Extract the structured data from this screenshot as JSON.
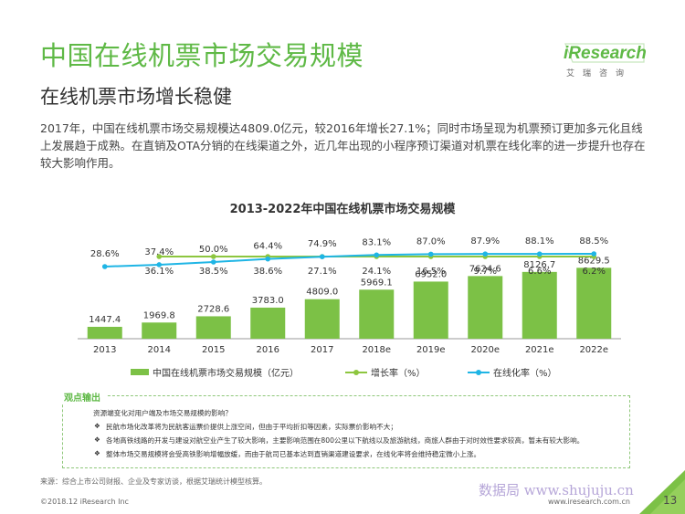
{
  "header": {
    "title": "中国在线机票市场交易规模",
    "subtitle": "在线机票市场增长稳健",
    "intro": "2017年，中国在线机票市场交易规模达4809.0亿元，较2016年增长27.1%；同时市场呈现为机票预订更加多元化且线上发展趋于成熟。在直销及OTA分销的在线渠道之外，近几年出现的小程序预订渠道对机票在线化率的进一步提升也存在较大影响作用。"
  },
  "logo": {
    "brand": "iResearch",
    "sub": "艾瑞咨询"
  },
  "chart_data": {
    "type": "bar",
    "title": "2013-2022年中国在线机票市场交易规模",
    "categories": [
      "2013",
      "2014",
      "2015",
      "2016",
      "2017",
      "2018e",
      "2019e",
      "2020e",
      "2021e",
      "2022e"
    ],
    "series": [
      {
        "name": "中国在线机票市场交易规模（亿元）",
        "type": "bar",
        "values": [
          1447.4,
          1969.8,
          2728.6,
          3783.0,
          4809.0,
          5969.1,
          6952.0,
          7624.6,
          8126.7,
          8629.5
        ],
        "labels": [
          "1447.4",
          "1969.8",
          "2728.6",
          "3783.0",
          "4809.0",
          "5969.1",
          "6952.0",
          "7624.6",
          "8126.7",
          "8629.5"
        ],
        "color": "#7cc146"
      },
      {
        "name": "增长率（%）",
        "type": "line",
        "values": [
          null,
          36.1,
          38.5,
          38.6,
          27.1,
          24.1,
          16.5,
          9.7,
          6.6,
          6.2
        ],
        "labels": [
          "",
          "36.1%",
          "38.5%",
          "38.6%",
          "27.1%",
          "24.1%",
          "16.5%",
          "9.7%",
          "6.6%",
          "6.2%"
        ],
        "color": "#8dc63f"
      },
      {
        "name": "在线化率（%）",
        "type": "line",
        "values": [
          28.6,
          37.4,
          50.0,
          64.4,
          74.9,
          83.1,
          87.0,
          87.9,
          88.1,
          88.5
        ],
        "labels": [
          "28.6%",
          "37.4%",
          "50.0%",
          "64.4%",
          "74.9%",
          "83.1%",
          "87.0%",
          "87.9%",
          "88.1%",
          "88.5%"
        ],
        "color": "#1fb5e5"
      }
    ],
    "legend_position": "bottom",
    "grid": false
  },
  "observations": {
    "heading": "观点输出",
    "intro": "资源端变化对用户端及市场交易规模的影响？",
    "bullet_glyph": "❖",
    "points": [
      "民航市场化改革将为民航客运票价提供上涨空间，但由于平均折扣等因素，实际票价影响不大；",
      "各地高铁线路的开发与建设对航空业产生了较大影响，主要影响范围在800公里以下航线以及旅游航线，商旅人群由于对时效性要求较高，暂未有较大影响。",
      "整体市场交易规模将会受高铁影响增幅放缓，而由于航司已基本达到直销渠道建设要求，在线化率将会维持稳定微小上涨。"
    ]
  },
  "footer": {
    "source": "来源：综合上市公司财报、企业及专家访谈，根据艾瑞统计模型核算。",
    "copyright": "©2018.12 iResearch Inc",
    "url": "www.iresearch.com.cn",
    "page": "13",
    "watermark": "数据局 www.shujuju.cn"
  }
}
